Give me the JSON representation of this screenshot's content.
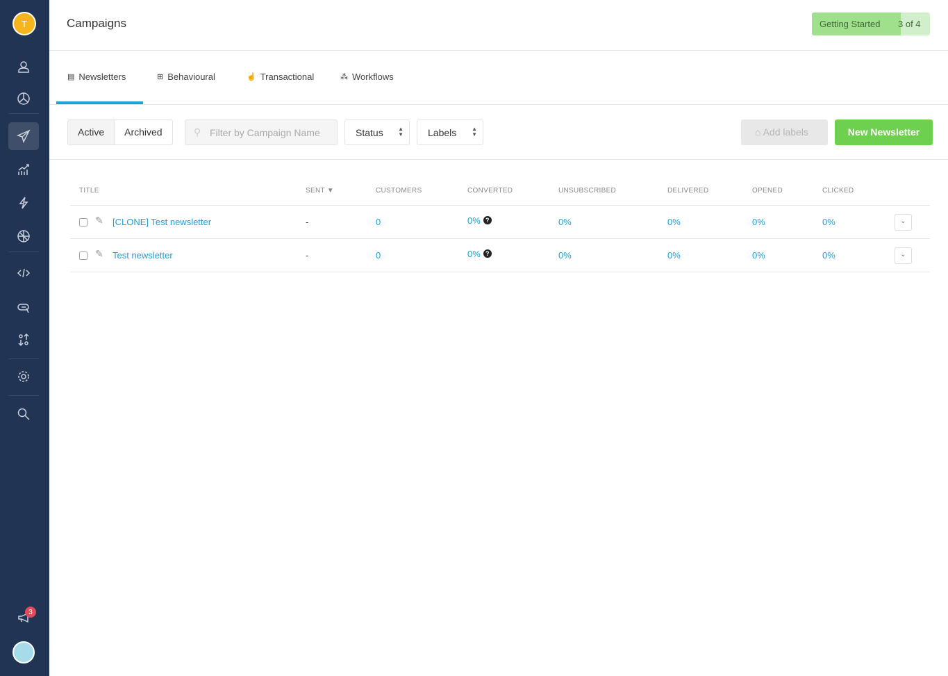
{
  "sidebar": {
    "user_initial": "T",
    "notification_count": "3",
    "items": [
      "contacts",
      "reports",
      "campaigns",
      "analytics",
      "automation",
      "radar",
      "developer",
      "messages",
      "import-export",
      "settings",
      "search"
    ]
  },
  "header": {
    "title": "Campaigns",
    "getting_started": {
      "label": "Getting Started",
      "progress": "3 of 4",
      "fraction": 0.75
    }
  },
  "tabs": [
    {
      "label": "Newsletters",
      "active": true
    },
    {
      "label": "Behavioural"
    },
    {
      "label": "Transactional"
    },
    {
      "label": "Workflows"
    }
  ],
  "toolbar": {
    "active": "Active",
    "archived": "Archived",
    "search_placeholder": "Filter by Campaign Name",
    "status": "Status",
    "labels": "Labels",
    "add_labels": "Add labels",
    "new_newsletter": "New Newsletter"
  },
  "table": {
    "headers": [
      "TITLE",
      "SENT ▼",
      "CUSTOMERS",
      "CONVERTED",
      "UNSUBSCRIBED",
      "DELIVERED",
      "OPENED",
      "CLICKED"
    ],
    "rows": [
      {
        "title": "[CLONE] Test newsletter",
        "sent": "-",
        "customers": "0",
        "converted": "0%",
        "unsubscribed": "0%",
        "delivered": "0%",
        "opened": "0%",
        "clicked": "0%"
      },
      {
        "title": "Test newsletter",
        "sent": "-",
        "customers": "0",
        "converted": "0%",
        "unsubscribed": "0%",
        "delivered": "0%",
        "opened": "0%",
        "clicked": "0%"
      }
    ]
  },
  "colors": {
    "sidebar": "#213454",
    "accent": "#1aa2d4",
    "primary": "#6dd14f"
  }
}
